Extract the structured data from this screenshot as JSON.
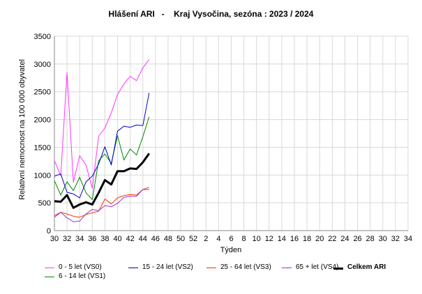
{
  "chart_data": {
    "type": "line",
    "title": "Hlášení ARI   -    Kraj Vysočina, sezóna : 2023 / 2024",
    "xlabel": "Týden",
    "ylabel": "Relativní nemocnost na 100 000 obyvatel",
    "ylim": [
      0,
      3500
    ],
    "yticks": [
      0,
      500,
      1000,
      1500,
      2000,
      2500,
      3000,
      3500
    ],
    "xtick_labels": [
      "30",
      "32",
      "34",
      "36",
      "38",
      "40",
      "42",
      "44",
      "46",
      "48",
      "50",
      "52",
      "2",
      "4",
      "6",
      "8",
      "10",
      "12",
      "14",
      "16",
      "18",
      "20",
      "22",
      "24",
      "26",
      "28",
      "30",
      "32",
      "34"
    ],
    "grid": true,
    "legend_position": "bottom",
    "weeks": [
      30,
      31,
      32,
      33,
      34,
      35,
      36,
      37,
      38,
      39,
      40,
      41,
      42,
      43,
      44,
      45
    ],
    "series": [
      {
        "name": "0 - 5 let (VS0)",
        "color": "#ff33ff",
        "width": 1,
        "values": [
          1260,
          990,
          2850,
          870,
          1350,
          1180,
          760,
          1700,
          1850,
          2120,
          2450,
          2640,
          2780,
          2700,
          2930,
          3080
        ]
      },
      {
        "name": "6 - 14 let (VS1)",
        "color": "#008800",
        "width": 1,
        "values": [
          900,
          640,
          880,
          720,
          960,
          680,
          560,
          1260,
          1380,
          1210,
          1710,
          1270,
          1470,
          1360,
          1690,
          2050
        ]
      },
      {
        "name": "15 - 24 let (VS2)",
        "color": "#0000cc",
        "width": 1,
        "values": [
          980,
          1020,
          690,
          660,
          590,
          880,
          980,
          1200,
          1510,
          1180,
          1790,
          1880,
          1860,
          1900,
          1890,
          2480
        ]
      },
      {
        "name": "25 - 64 let (VS3)",
        "color": "#ff3300",
        "width": 1,
        "values": [
          270,
          330,
          300,
          260,
          240,
          290,
          320,
          350,
          570,
          480,
          590,
          630,
          650,
          640,
          740,
          780
        ]
      },
      {
        "name": "65 + let (VS4)",
        "color": "#9933cc",
        "width": 1,
        "values": [
          240,
          330,
          230,
          160,
          170,
          300,
          380,
          360,
          450,
          430,
          490,
          600,
          620,
          620,
          740,
          740
        ]
      },
      {
        "name": "Celkem ARI",
        "color": "#000000",
        "width": 3,
        "values": [
          530,
          520,
          640,
          410,
          470,
          510,
          470,
          680,
          910,
          830,
          1070,
          1070,
          1120,
          1110,
          1230,
          1390
        ]
      }
    ]
  }
}
